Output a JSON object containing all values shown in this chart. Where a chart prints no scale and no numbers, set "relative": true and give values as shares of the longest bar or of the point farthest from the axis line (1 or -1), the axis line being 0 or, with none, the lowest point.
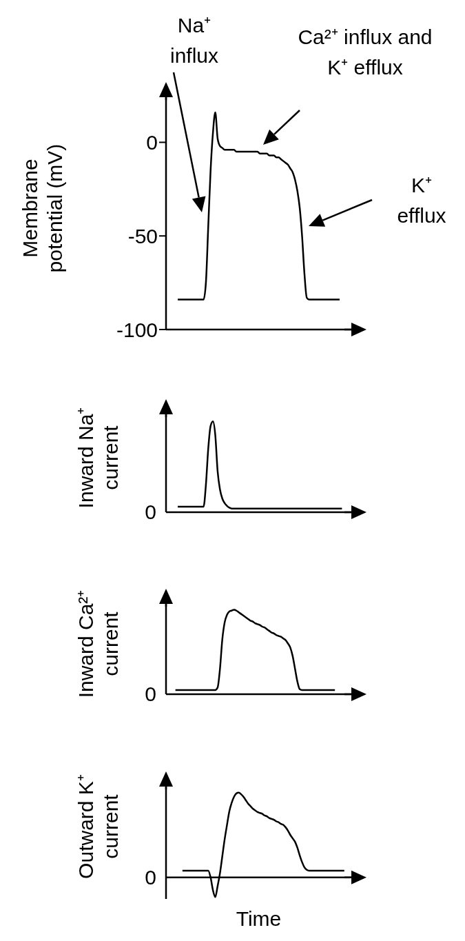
{
  "chart_data": [
    {
      "type": "line",
      "ylabel": "Membrane potential (mV)",
      "ylim": [
        -100,
        30
      ],
      "yticks": [
        -100,
        -50,
        0
      ],
      "tick_labels": "y",
      "color": "#000000",
      "annotations": [
        "Na⁺ influx",
        "Ca²⁺ influx and K⁺ efflux",
        "K⁺ efflux"
      ],
      "categories": [
        null,
        null,
        null,
        null,
        null,
        null,
        null,
        null,
        null,
        null,
        null,
        null,
        null,
        null,
        null,
        null,
        null,
        null,
        null,
        null,
        null,
        null,
        null,
        null,
        null,
        null,
        null,
        null,
        null,
        null,
        null,
        null,
        null,
        null,
        null,
        null,
        null,
        null,
        null,
        null,
        null,
        null,
        null,
        null,
        null,
        null,
        null,
        null,
        null,
        null,
        null,
        null,
        null,
        null,
        null,
        null,
        null,
        null,
        null,
        null,
        null,
        null,
        null,
        null,
        null,
        null,
        null,
        null,
        null,
        null,
        null,
        null,
        null,
        null,
        null,
        null,
        null,
        null,
        null,
        null
      ],
      "values": [
        null,
        null,
        null,
        null,
        null,
        -84,
        -84,
        -84,
        -84,
        -84,
        -84,
        -84,
        -84,
        -84,
        -84,
        -84,
        -84,
        -75,
        -45,
        -15,
        5,
        16,
        2,
        -2,
        -3,
        -4,
        -4,
        -4,
        -4,
        -4,
        -5,
        -5,
        -5,
        -5,
        -5,
        -5,
        -5,
        -5,
        -5,
        -5,
        -6,
        -6,
        -6,
        -6,
        -7,
        -7,
        -7,
        -8,
        -8,
        -9,
        -10,
        -11,
        -12,
        -14,
        -16,
        -20,
        -26,
        -35,
        -50,
        -70,
        -83,
        -84,
        -84,
        -84,
        -84,
        -84,
        -84,
        -84,
        -84,
        -84,
        -84,
        -84,
        -84,
        -84,
        -84,
        null,
        null,
        null,
        null,
        null
      ]
    },
    {
      "type": "line",
      "ylabel": "Inward Na⁺ current",
      "relative": true,
      "tick_labels": false,
      "color": "#000000",
      "annotations": [
        "0"
      ],
      "categories": [
        null,
        null,
        null,
        null,
        null,
        null,
        null,
        null,
        null,
        null,
        null,
        null,
        null,
        null,
        null,
        null,
        null,
        null,
        null,
        null,
        null,
        null,
        null,
        null,
        null,
        null,
        null,
        null,
        null,
        null,
        null,
        null,
        null,
        null,
        null,
        null,
        null,
        null,
        null,
        null,
        null,
        null,
        null,
        null,
        null,
        null,
        null,
        null,
        null,
        null,
        null,
        null,
        null,
        null,
        null,
        null,
        null,
        null,
        null,
        null,
        null,
        null,
        null,
        null,
        null,
        null,
        null,
        null,
        null,
        null,
        null,
        null,
        null,
        null,
        null,
        null,
        null,
        null,
        null,
        null
      ],
      "values": [
        null,
        null,
        null,
        null,
        null,
        0.06,
        0.06,
        0.06,
        0.06,
        0.06,
        0.06,
        0.06,
        0.06,
        0.06,
        0.06,
        0.06,
        0.06,
        0.3,
        0.7,
        0.95,
        1,
        0.85,
        0.45,
        0.25,
        0.15,
        0.1,
        0.07,
        0.05,
        0.04,
        0.04,
        0.04,
        0.04,
        0.04,
        0.04,
        0.04,
        0.04,
        0.04,
        0.04,
        0.04,
        0.04,
        0.04,
        0.04,
        0.04,
        0.04,
        0.04,
        0.04,
        0.04,
        0.04,
        0.04,
        0.04,
        0.04,
        0.04,
        0.04,
        0.04,
        0.04,
        0.04,
        0.04,
        0.04,
        0.04,
        0.04,
        0.04,
        0.04,
        0.04,
        0.04,
        0.04,
        0.04,
        0.04,
        0.04,
        0.04,
        0.04,
        0.04,
        0.04,
        0.04,
        0.04,
        0.04,
        0.04,
        null,
        null,
        null,
        null
      ]
    },
    {
      "type": "line",
      "ylabel": "Inward Ca²⁺ current",
      "relative": true,
      "tick_labels": false,
      "color": "#000000",
      "annotations": [
        "0"
      ],
      "categories": [
        null,
        null,
        null,
        null,
        null,
        null,
        null,
        null,
        null,
        null,
        null,
        null,
        null,
        null,
        null,
        null,
        null,
        null,
        null,
        null,
        null,
        null,
        null,
        null,
        null,
        null,
        null,
        null,
        null,
        null,
        null,
        null,
        null,
        null,
        null,
        null,
        null,
        null,
        null,
        null,
        null,
        null,
        null,
        null,
        null,
        null,
        null,
        null,
        null,
        null,
        null,
        null,
        null,
        null,
        null,
        null,
        null,
        null,
        null,
        null,
        null,
        null,
        null,
        null,
        null,
        null,
        null,
        null,
        null,
        null,
        null,
        null,
        null,
        null,
        null,
        null,
        null,
        null,
        null,
        null
      ],
      "values": [
        null,
        null,
        null,
        null,
        0.05,
        0.05,
        0.05,
        0.05,
        0.05,
        0.05,
        0.05,
        0.05,
        0.05,
        0.05,
        0.05,
        0.05,
        0.05,
        0.05,
        0.05,
        0.05,
        0.05,
        0.05,
        0.08,
        0.3,
        0.65,
        0.85,
        0.94,
        0.98,
        0.99,
        1,
        0.99,
        0.97,
        0.95,
        0.93,
        0.91,
        0.89,
        0.87,
        0.86,
        0.84,
        0.83,
        0.82,
        0.8,
        0.79,
        0.77,
        0.75,
        0.73,
        0.72,
        0.7,
        0.69,
        0.68,
        0.66,
        0.64,
        0.6,
        0.55,
        0.45,
        0.3,
        0.15,
        0.06,
        0.05,
        0.05,
        0.05,
        0.05,
        0.05,
        0.05,
        0.05,
        0.05,
        0.05,
        0.05,
        0.05,
        0.05,
        0.05,
        0.05,
        0.05,
        null,
        null,
        null,
        null,
        null,
        null,
        null
      ]
    },
    {
      "type": "line",
      "ylabel": "Outward K⁺ current",
      "xlabel": "Time",
      "relative": true,
      "tick_labels": false,
      "color": "#000000",
      "annotations": [
        "0"
      ],
      "categories": [
        null,
        null,
        null,
        null,
        null,
        null,
        null,
        null,
        null,
        null,
        null,
        null,
        null,
        null,
        null,
        null,
        null,
        null,
        null,
        null,
        null,
        null,
        null,
        null,
        null,
        null,
        null,
        null,
        null,
        null,
        null,
        null,
        null,
        null,
        null,
        null,
        null,
        null,
        null,
        null,
        null,
        null,
        null,
        null,
        null,
        null,
        null,
        null,
        null,
        null,
        null,
        null,
        null,
        null,
        null,
        null,
        null,
        null,
        null,
        null,
        null,
        null,
        null,
        null,
        null,
        null,
        null,
        null,
        null,
        null,
        null,
        null,
        null,
        null,
        null,
        null,
        null,
        null,
        null,
        null
      ],
      "values": [
        null,
        null,
        null,
        null,
        null,
        null,
        null,
        0.08,
        0.08,
        0.08,
        0.08,
        0.08,
        0.08,
        0.08,
        0.08,
        0.08,
        0.08,
        0.08,
        0.08,
        0,
        -0.15,
        -0.23,
        -0.1,
        0.05,
        0.25,
        0.45,
        0.62,
        0.78,
        0.88,
        0.95,
        0.99,
        1,
        0.98,
        0.95,
        0.91,
        0.87,
        0.84,
        0.81,
        0.79,
        0.77,
        0.76,
        0.75,
        0.73,
        0.72,
        0.7,
        0.69,
        0.68,
        0.66,
        0.65,
        0.63,
        0.62,
        0.59,
        0.55,
        0.5,
        0.46,
        0.42,
        0.35,
        0.26,
        0.18,
        0.12,
        0.09,
        0.08,
        0.08,
        0.08,
        0.08,
        0.08,
        0.08,
        0.08,
        0.08,
        0.08,
        0.08,
        0.08,
        0.08,
        0.08,
        0.08,
        0.08,
        0.08,
        null,
        null,
        null
      ]
    }
  ]
}
